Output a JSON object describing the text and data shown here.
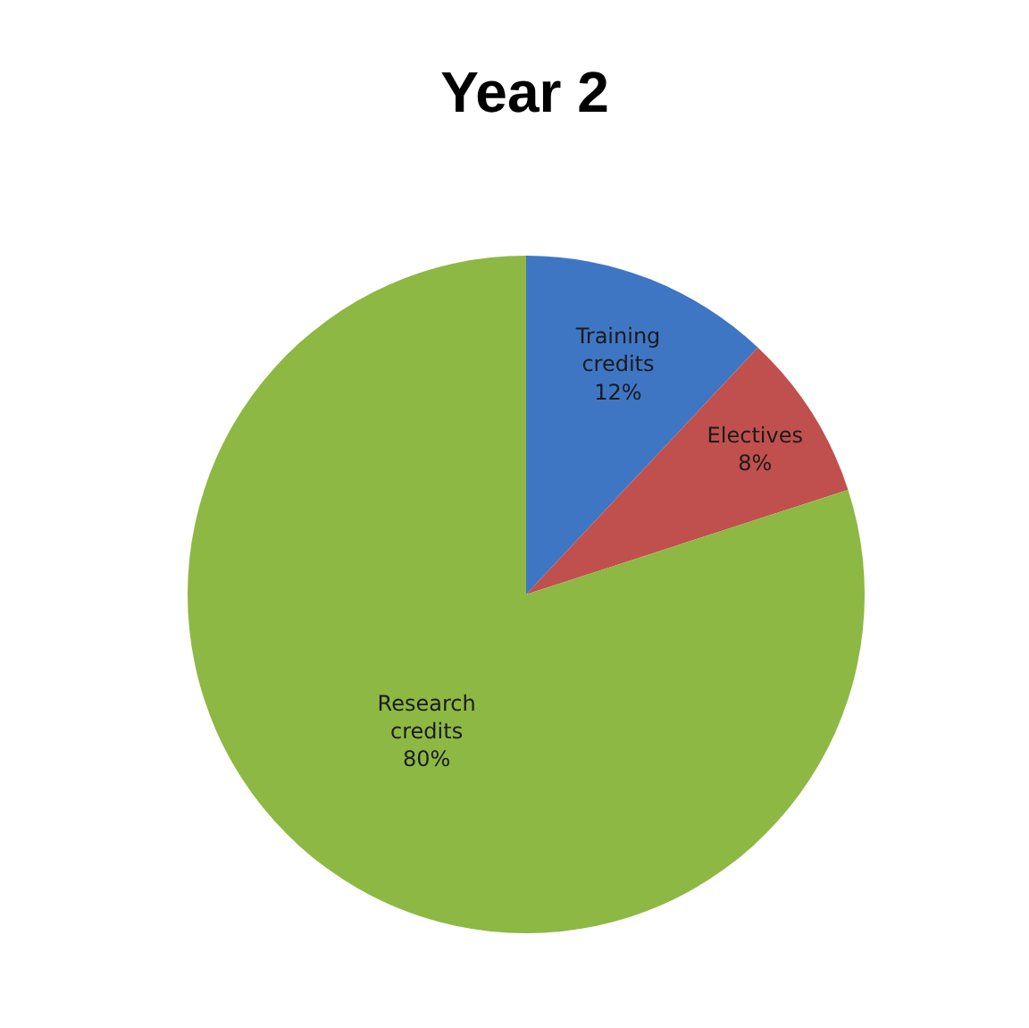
{
  "chart_data": {
    "type": "pie",
    "title": "Year 2",
    "categories": [
      "Training credits",
      "Electives",
      "Research credits"
    ],
    "values": [
      12,
      8,
      80
    ],
    "value_labels": [
      "12%",
      "8%",
      "80%"
    ],
    "colors": [
      "#3f76c4",
      "#c0504d",
      "#8db843"
    ],
    "legend": false
  }
}
